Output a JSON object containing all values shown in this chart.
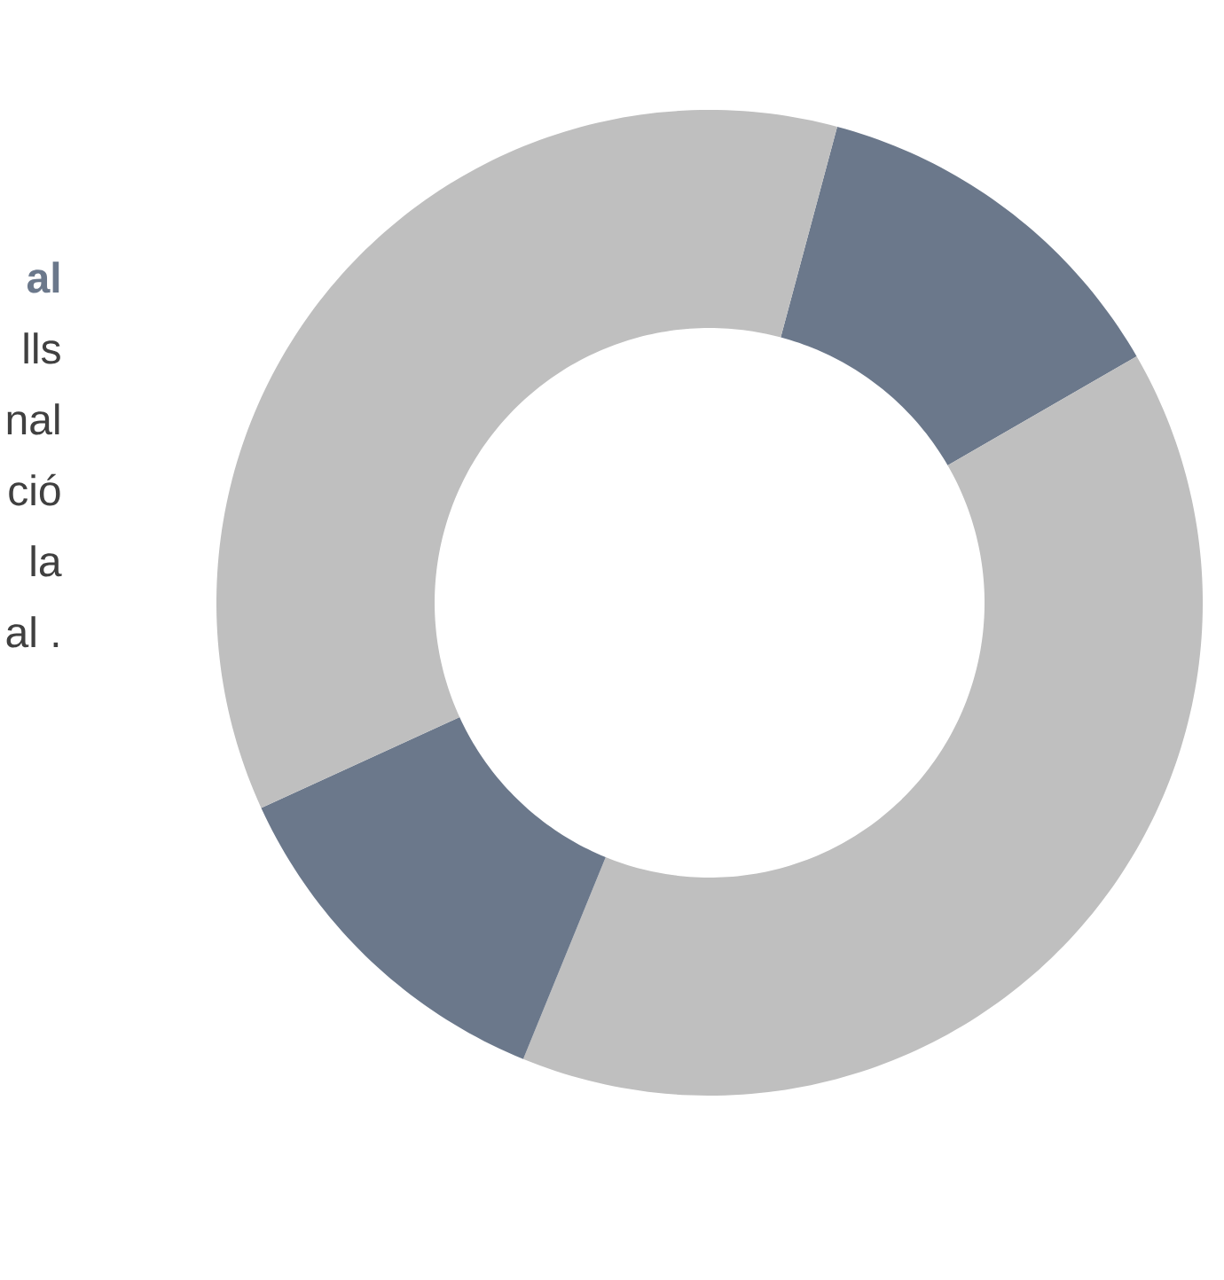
{
  "chart_data": {
    "type": "donut",
    "title": "al",
    "annotations": [
      "lls",
      "nal",
      "ció",
      "la",
      "al ."
    ],
    "categories": [
      null,
      null,
      null,
      null
    ],
    "values": [
      12.5,
      39.5,
      12,
      36
    ],
    "colors": [
      "#6b788b",
      "#bfbfbf",
      "#6b788b",
      "#bfbfbf"
    ]
  }
}
